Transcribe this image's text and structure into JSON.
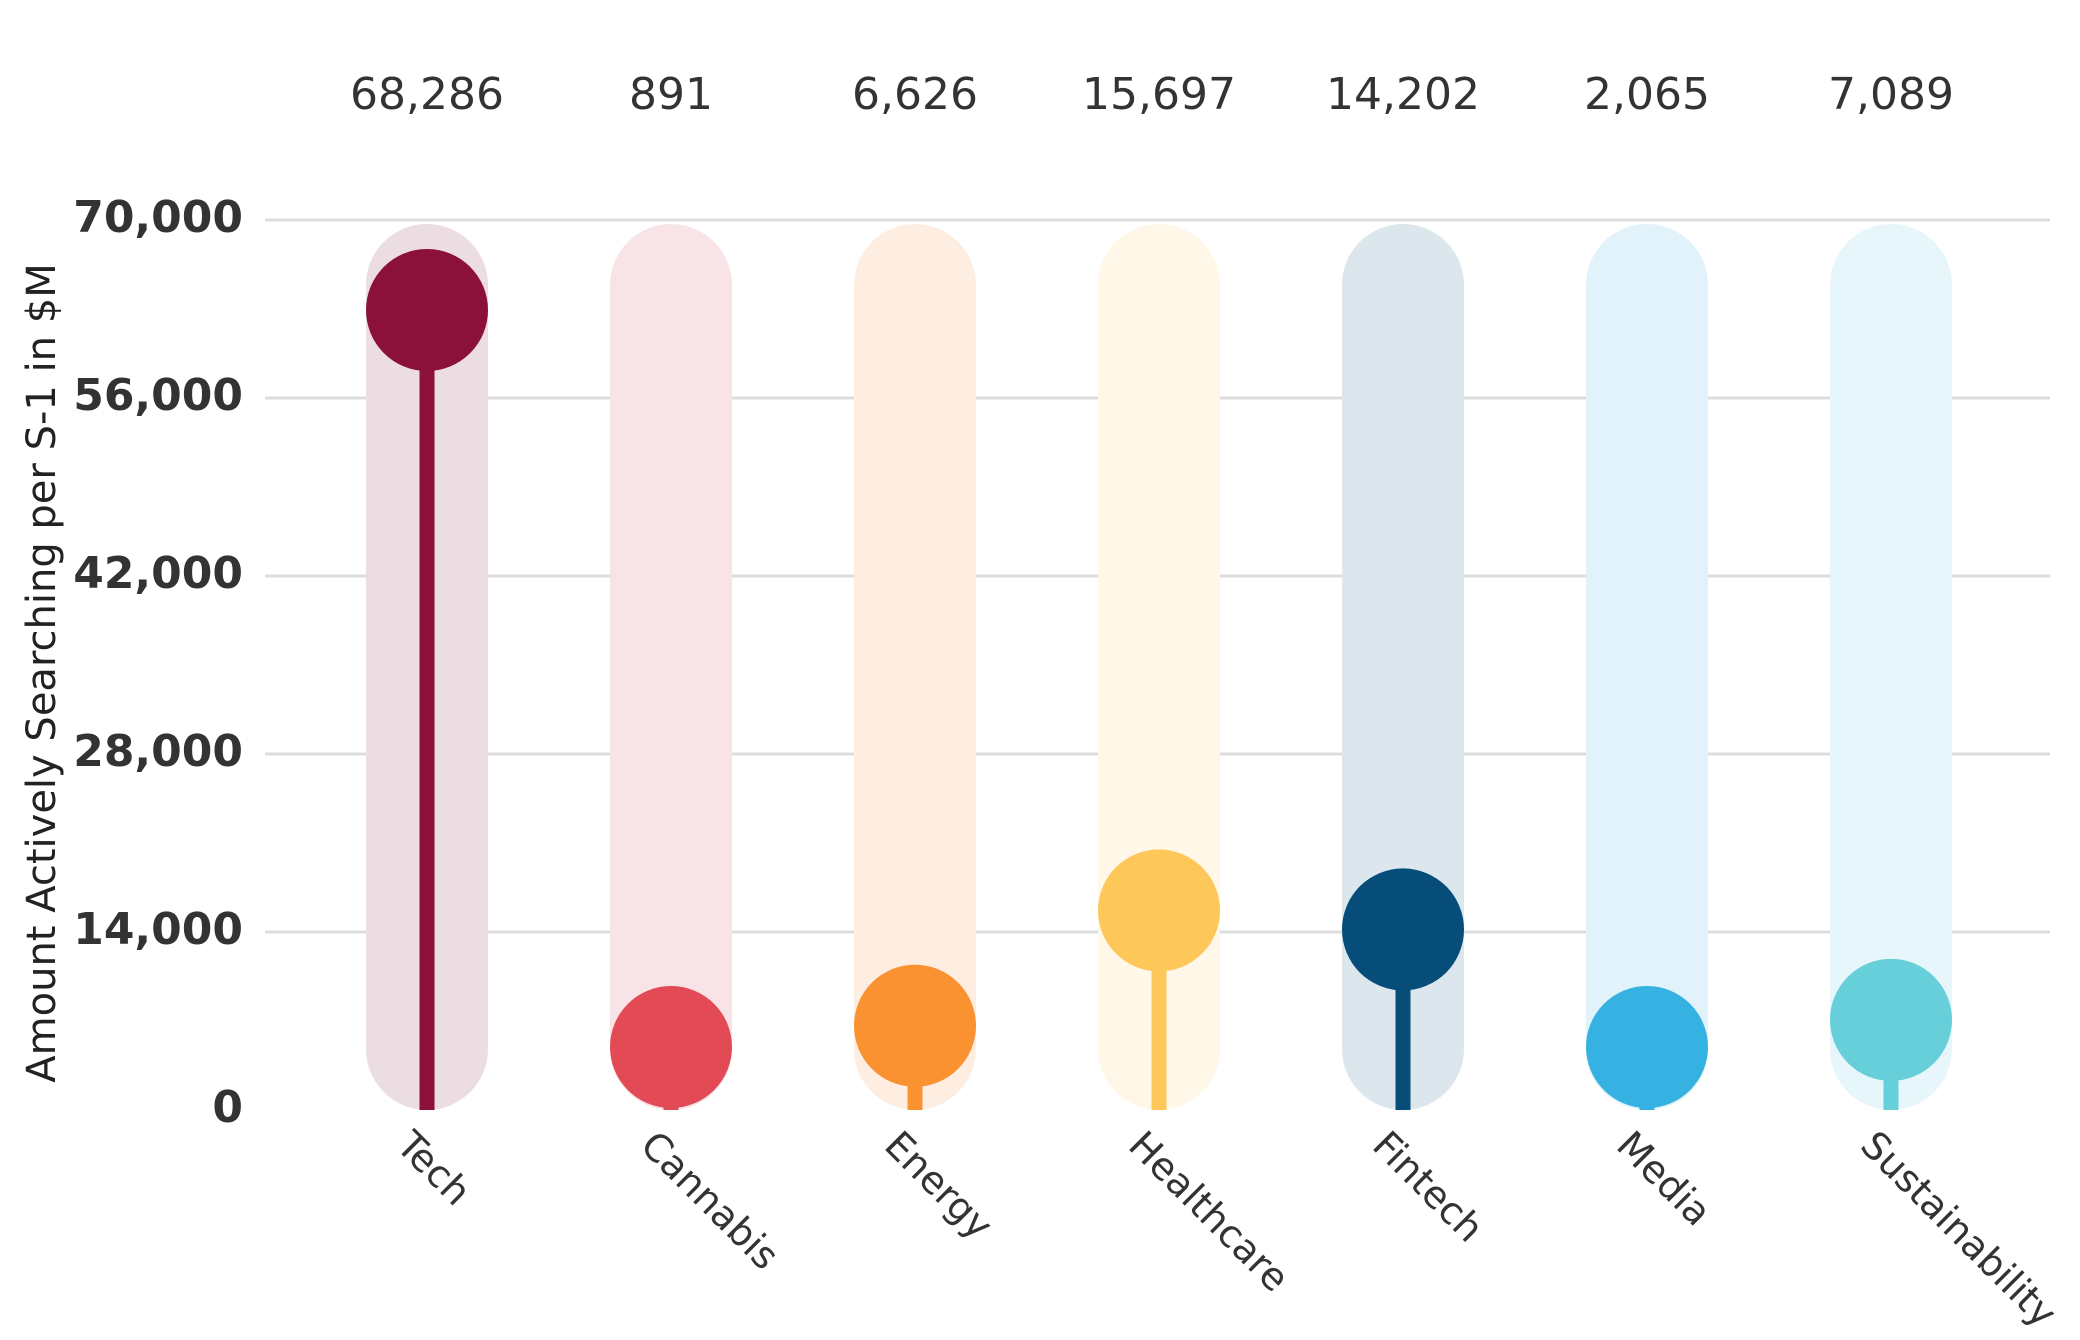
{
  "chart_data": {
    "type": "lollipop",
    "title": "",
    "ylabel": "Amount Actively Searching per S-1 in $M",
    "xlabel": "",
    "ylim": [
      0,
      70000
    ],
    "yticks": [
      0,
      14000,
      28000,
      42000,
      56000,
      70000
    ],
    "ytick_labels": [
      "0",
      "14,000",
      "28,000",
      "42,000",
      "56,000",
      "70,000"
    ],
    "grid": true,
    "categories": [
      "Tech",
      "Cannabis",
      "Energy",
      "Healthcare",
      "Fintech",
      "Media",
      "Sustainability"
    ],
    "values": [
      68286,
      891,
      6626,
      15697,
      14202,
      2065,
      7089
    ],
    "value_labels": [
      "68,286",
      "891",
      "6,626",
      "15,697",
      "14,202",
      "2,065",
      "7,089"
    ],
    "colors": [
      "#8b103a",
      "#e24a55",
      "#fb9231",
      "#fdc75a",
      "#064d7a",
      "#36b2e2",
      "#66cfd9"
    ],
    "track_colors": [
      "#ecdde3",
      "#f8e4e6",
      "#fdeee1",
      "#fff8e8",
      "#dce6ed",
      "#e1f2fa",
      "#e6f6fa"
    ]
  }
}
